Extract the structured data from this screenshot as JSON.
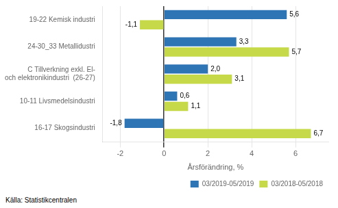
{
  "chart_data": {
    "type": "bar",
    "orientation": "horizontal",
    "categories": [
      "19-22 Kemisk industri",
      "24-30_33 Metallidustri",
      "C Tillverkning exkl. El-\noch elektronikindustri  (26-27)",
      "10-11 Livsmedelsindustri",
      "16-17 Skogsindustri"
    ],
    "series": [
      {
        "name": "03/2019-05/2019",
        "color": "#2E75B6",
        "values": [
          5.6,
          3.3,
          2.0,
          0.6,
          -1.8
        ],
        "value_labels": [
          "5,6",
          "3,3",
          "2,0",
          "0,6",
          "-1,8"
        ]
      },
      {
        "name": "03/2018-05/2018",
        "color": "#C5D949",
        "values": [
          -1.1,
          5.7,
          3.1,
          1.1,
          6.7
        ],
        "value_labels": [
          "-1,1",
          "5,7",
          "3,1",
          "1,1",
          "6,7"
        ]
      }
    ],
    "xlabel": "Årsförändring, %",
    "xlim": [
      -2.8,
      7.5
    ],
    "xticks": [
      -2,
      0,
      2,
      4,
      6
    ],
    "grid": true,
    "legend": "lower right",
    "data_labels": true,
    "annotations": [
      "Källa: Statistikcentralen"
    ]
  }
}
